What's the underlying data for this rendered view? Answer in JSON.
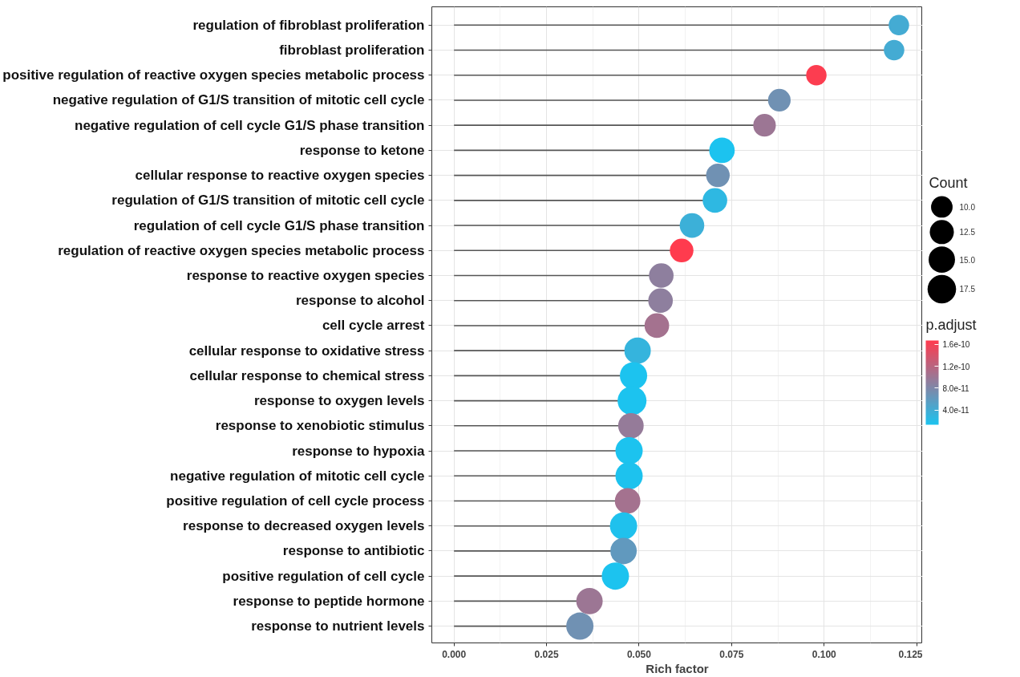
{
  "chart_data": {
    "type": "lollipop",
    "orientation": "horizontal",
    "categories": [
      "regulation of fibroblast proliferation",
      "fibroblast proliferation",
      "positive regulation of reactive oxygen species metabolic process",
      "negative regulation of G1/S transition of mitotic cell cycle",
      "negative regulation of cell cycle G1/S phase transition",
      "response to ketone",
      "cellular response to reactive oxygen species",
      "regulation of G1/S transition of mitotic cell cycle",
      "regulation of cell cycle G1/S phase transition",
      "regulation of reactive oxygen species metabolic process",
      "response to reactive oxygen species",
      "response to alcohol",
      "cell cycle arrest",
      "cellular response to oxidative stress",
      "cellular response to chemical stress",
      "response to oxygen levels",
      "response to xenobiotic stimulus",
      "response to hypoxia",
      "negative regulation of mitotic cell cycle",
      "positive regulation of cell cycle process",
      "response to decreased oxygen levels",
      "response to antibiotic",
      "positive regulation of cell cycle",
      "response to peptide hormone",
      "response to nutrient levels"
    ],
    "values": [
      0.1202,
      0.1189,
      0.0979,
      0.0879,
      0.0839,
      0.0724,
      0.0713,
      0.0705,
      0.0643,
      0.0615,
      0.056,
      0.0558,
      0.0548,
      0.0496,
      0.0485,
      0.0481,
      0.0478,
      0.0473,
      0.0473,
      0.0469,
      0.0458,
      0.0458,
      0.0436,
      0.0366,
      0.034
    ],
    "sizes": [
      9,
      9,
      9,
      11,
      11,
      14,
      12,
      13,
      13,
      12,
      13,
      13,
      13,
      15,
      16,
      18,
      14,
      16,
      16,
      14,
      16,
      15,
      16,
      15,
      16
    ],
    "size_legend": [
      {
        "value": 10,
        "label": "10.0"
      },
      {
        "value": 12.5,
        "label": "12.5"
      },
      {
        "value": 15,
        "label": "15.0"
      },
      {
        "value": 17.5,
        "label": "17.5"
      }
    ],
    "cvalues": [
      4e-11,
      4e-11,
      1.65e-10,
      7e-11,
      1e-10,
      1.3e-11,
      7e-11,
      2.5e-11,
      3.5e-11,
      1.67e-10,
      9e-11,
      9e-11,
      1.05e-10,
      3e-11,
      1.3e-11,
      1.3e-11,
      9.5e-11,
      1.3e-11,
      1.4e-11,
      1.05e-10,
      1.5e-11,
      6e-11,
      1.3e-11,
      1e-10,
      7e-11
    ],
    "clim": [
      1.3e-11,
      1.67e-10
    ],
    "cticks": [
      {
        "value": 4e-11,
        "label": "4.0e-11"
      },
      {
        "value": 8e-11,
        "label": "8.0e-11"
      },
      {
        "value": 1.2e-10,
        "label": "1.2e-10"
      },
      {
        "value": 1.6e-10,
        "label": "1.6e-10"
      }
    ],
    "xlabel": "Rich factor",
    "legend_title": "Count",
    "clabel": "p.adjust",
    "xlim": [
      -0.006,
      0.1266
    ],
    "xticks": [
      {
        "value": 0,
        "label": "0.000"
      },
      {
        "value": 0.025,
        "label": "0.025"
      },
      {
        "value": 0.05,
        "label": "0.050"
      },
      {
        "value": 0.075,
        "label": "0.075"
      },
      {
        "value": 0.1,
        "label": "0.100"
      },
      {
        "value": 0.125,
        "label": "0.125"
      }
    ],
    "grid": true
  }
}
